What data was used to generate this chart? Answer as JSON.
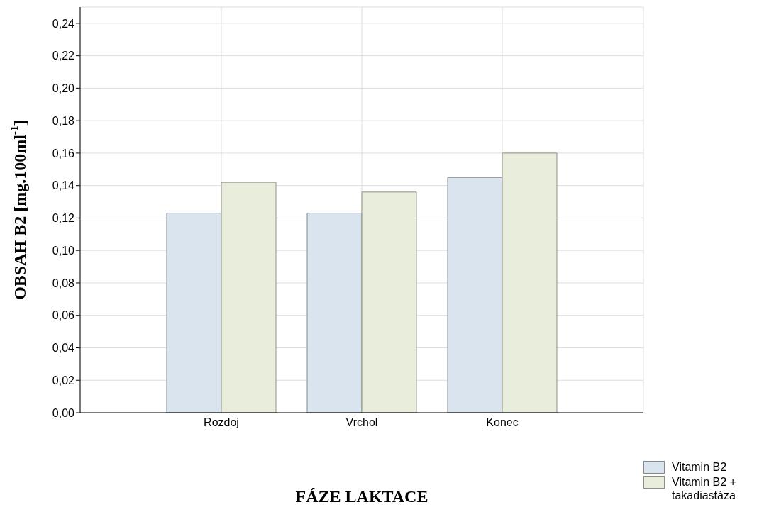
{
  "chart_data": {
    "type": "bar",
    "xlabel": "FÁZE LAKTACE",
    "ylabel": "OBSAH B2 [mg.100ml$^{-1}$]",
    "categories": [
      "Rozdoj",
      "Vrchol",
      "Konec"
    ],
    "series": [
      {
        "name": "Vitamin B2",
        "color": "#dae4ef",
        "values": [
          0.123,
          0.123,
          0.145
        ]
      },
      {
        "name": "Vitamin B2 + takadiastáza",
        "color": "#e9eedc",
        "values": [
          0.142,
          0.136,
          0.16
        ]
      }
    ],
    "ylim": [
      0,
      0.25
    ],
    "yticks": [
      {
        "value": 0,
        "label": "0,00"
      },
      {
        "value": 0.02,
        "label": "0,02"
      },
      {
        "value": 0.04,
        "label": "0,04"
      },
      {
        "value": 0.06,
        "label": "0,06"
      },
      {
        "value": 0.08,
        "label": "0,08"
      },
      {
        "value": 0.1,
        "label": "0,10"
      },
      {
        "value": 0.12,
        "label": "0,12"
      },
      {
        "value": 0.14,
        "label": "0,14"
      },
      {
        "value": 0.16,
        "label": "0,16"
      },
      {
        "value": 0.18,
        "label": "0,18"
      },
      {
        "value": 0.2,
        "label": "0,20"
      },
      {
        "value": 0.22,
        "label": "0,22"
      },
      {
        "value": 0.24,
        "label": "0,24"
      }
    ],
    "grid": true,
    "legend": "bottom right"
  }
}
